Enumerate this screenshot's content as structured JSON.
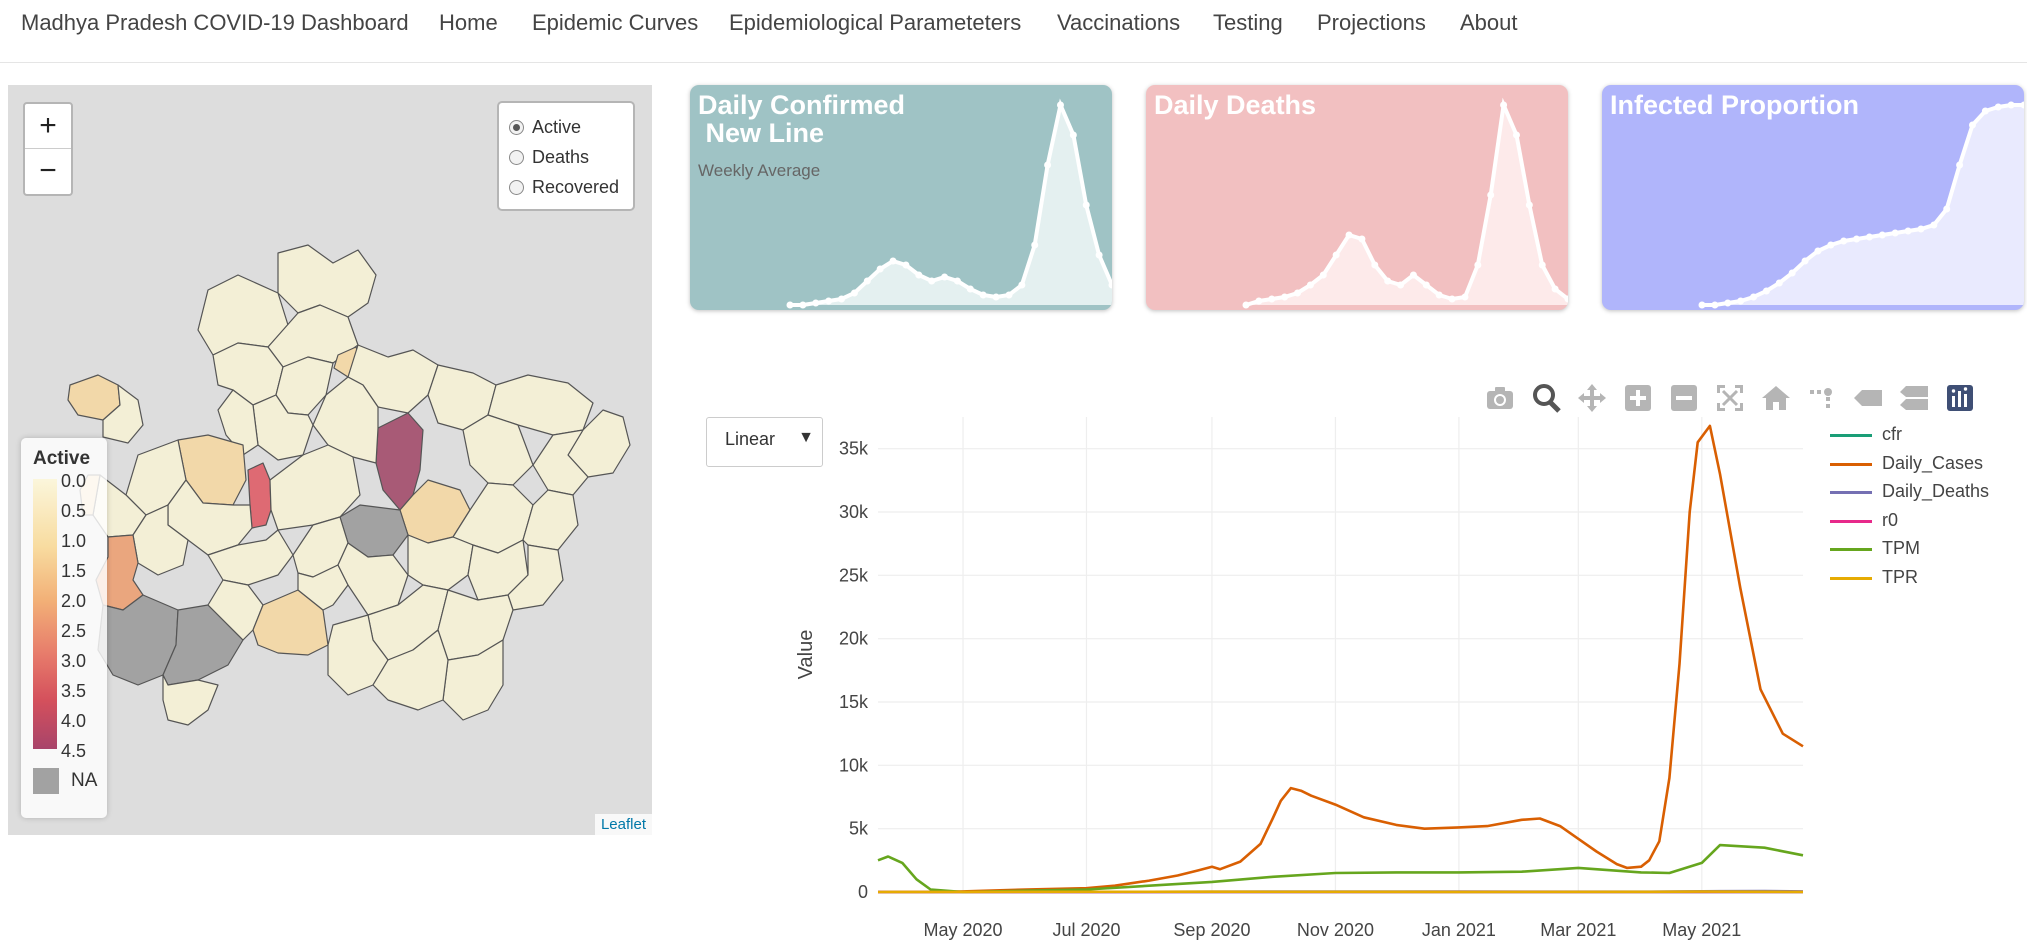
{
  "nav": {
    "brand": "Madhya Pradesh COVID-19 Dashboard",
    "items": [
      "Home",
      "Epidemic Curves",
      "Epidemiological Parameteters",
      "Vaccinations",
      "Testing",
      "Projections",
      "About"
    ]
  },
  "map": {
    "zoom_in": "+",
    "zoom_out": "−",
    "layers": [
      {
        "label": "Active",
        "selected": true
      },
      {
        "label": "Deaths",
        "selected": false
      },
      {
        "label": "Recovered",
        "selected": false
      }
    ],
    "legend": {
      "title": "Active",
      "labels": [
        "0.0",
        "0.5",
        "1.0",
        "1.5",
        "2.0",
        "2.5",
        "3.0",
        "3.5",
        "4.0",
        "4.5"
      ],
      "na_label": "NA"
    },
    "attribution": "Leaflet",
    "colors": {
      "background": "#dddddd",
      "low": "#f3efd6",
      "mid": "#f2d8a9",
      "orange": "#eaa67e",
      "red": "#de6a73",
      "dark": "#a85a76",
      "na": "#a2a2a2"
    }
  },
  "cards": [
    {
      "title_line1": "Daily Confirmed",
      "title_line2": " New Line",
      "subtitle": "Weekly Average",
      "bg": "#9fc3c5",
      "fill": "#e4f0f0",
      "values": [
        0,
        0,
        0.01,
        0.02,
        0.03,
        0.06,
        0.12,
        0.18,
        0.22,
        0.2,
        0.15,
        0.12,
        0.14,
        0.12,
        0.08,
        0.05,
        0.04,
        0.05,
        0.1,
        0.3,
        0.7,
        1.0,
        0.85,
        0.5,
        0.25,
        0.1
      ]
    },
    {
      "title_line1": "Daily Deaths",
      "title_line2": "",
      "subtitle": "",
      "bg": "#f2c0c1",
      "fill": "#fdeaea",
      "values": [
        0,
        0.02,
        0.03,
        0.04,
        0.06,
        0.1,
        0.15,
        0.25,
        0.35,
        0.33,
        0.2,
        0.12,
        0.1,
        0.15,
        0.1,
        0.05,
        0.03,
        0.04,
        0.2,
        0.55,
        1.0,
        0.85,
        0.5,
        0.2,
        0.08,
        0.03
      ]
    },
    {
      "title_line1": "Infected Proportion",
      "title_line2": "",
      "subtitle": "",
      "bg": "#b0b5fb",
      "fill": "#e9eafe",
      "values": [
        0,
        0.0,
        0.01,
        0.02,
        0.04,
        0.07,
        0.11,
        0.16,
        0.22,
        0.27,
        0.3,
        0.32,
        0.33,
        0.34,
        0.35,
        0.36,
        0.37,
        0.38,
        0.4,
        0.48,
        0.7,
        0.9,
        0.97,
        0.99,
        1.0,
        1.0
      ]
    }
  ],
  "toolbar": {
    "icons": [
      "camera-icon",
      "zoom-icon",
      "pan-icon",
      "zoom-in-icon",
      "zoom-out-icon",
      "autoscale-icon",
      "reset-axes-icon",
      "spike-lines-icon",
      "hover-closest-icon",
      "hover-compare-icon",
      "plotly-logo-icon"
    ]
  },
  "scale_select": {
    "value": "Linear",
    "arrow": "▼"
  },
  "chart_data": {
    "type": "line",
    "xlabel": "",
    "ylabel": "Value",
    "ylim": [
      0,
      37500
    ],
    "yticks": [
      0,
      5000,
      10000,
      15000,
      20000,
      25000,
      30000,
      35000
    ],
    "ytick_labels": [
      "0",
      "5k",
      "10k",
      "15k",
      "20k",
      "25k",
      "30k",
      "35k"
    ],
    "xlim": [
      "2020-03-20",
      "2021-06-20"
    ],
    "xticks": [
      "2020-05-01",
      "2020-07-01",
      "2020-09-01",
      "2020-11-01",
      "2021-01-01",
      "2021-03-01",
      "2021-05-01"
    ],
    "xtick_labels": [
      "May 2020",
      "Jul 2020",
      "Sep 2020",
      "Nov 2020",
      "Jan 2021",
      "Mar 2021",
      "May 2021"
    ],
    "grid": true,
    "legend_position": "top-right",
    "series": [
      {
        "name": "cfr",
        "color": "#1a9e77",
        "x": [
          "2020-03-20",
          "2020-04-15",
          "2021-06-20"
        ],
        "y": [
          0,
          0,
          0
        ]
      },
      {
        "name": "Daily_Cases",
        "color": "#d95f02",
        "x": [
          "2020-03-20",
          "2020-04-15",
          "2020-05-01",
          "2020-06-01",
          "2020-07-01",
          "2020-07-15",
          "2020-08-01",
          "2020-08-15",
          "2020-08-25",
          "2020-09-01",
          "2020-09-05",
          "2020-09-15",
          "2020-09-25",
          "2020-10-01",
          "2020-10-05",
          "2020-10-10",
          "2020-10-15",
          "2020-10-20",
          "2020-11-01",
          "2020-11-15",
          "2020-12-01",
          "2020-12-15",
          "2021-01-01",
          "2021-01-15",
          "2021-02-01",
          "2021-02-10",
          "2021-02-20",
          "2021-03-01",
          "2021-03-10",
          "2021-03-20",
          "2021-03-25",
          "2021-04-01",
          "2021-04-05",
          "2021-04-10",
          "2021-04-15",
          "2021-04-20",
          "2021-04-25",
          "2021-04-29",
          "2021-05-05",
          "2021-05-10",
          "2021-05-20",
          "2021-05-30",
          "2021-06-10",
          "2021-06-20"
        ],
        "y": [
          0,
          0,
          50,
          200,
          300,
          500,
          900,
          1300,
          1700,
          2000,
          1800,
          2400,
          3800,
          5800,
          7200,
          8200,
          8000,
          7600,
          6900,
          5900,
          5300,
          5000,
          5100,
          5200,
          5700,
          5800,
          5200,
          4200,
          3200,
          2200,
          1900,
          2000,
          2500,
          4000,
          9000,
          18000,
          30000,
          35500,
          36800,
          33000,
          24000,
          16000,
          12500,
          11500
        ]
      },
      {
        "name": "Daily_Deaths",
        "color": "#7570b3",
        "x": [
          "2020-03-20",
          "2020-08-01",
          "2020-10-01",
          "2021-01-01",
          "2021-04-01",
          "2021-05-10",
          "2021-06-01",
          "2021-06-20"
        ],
        "y": [
          0,
          15,
          40,
          30,
          25,
          60,
          80,
          50
        ]
      },
      {
        "name": "r0",
        "color": "#e7298a",
        "x": [
          "2020-03-20",
          "2021-06-20"
        ],
        "y": [
          0,
          0
        ]
      },
      {
        "name": "TPM",
        "color": "#66a61e",
        "x": [
          "2020-03-20",
          "2020-03-25",
          "2020-04-01",
          "2020-04-08",
          "2020-04-15",
          "2020-05-01",
          "2020-06-01",
          "2020-07-01",
          "2020-08-01",
          "2020-09-01",
          "2020-10-01",
          "2020-11-01",
          "2020-12-01",
          "2021-01-01",
          "2021-02-01",
          "2021-03-01",
          "2021-04-01",
          "2021-04-15",
          "2021-05-01",
          "2021-05-10",
          "2021-06-01",
          "2021-06-20"
        ],
        "y": [
          2500,
          2800,
          2300,
          1000,
          200,
          0,
          100,
          200,
          500,
          800,
          1200,
          1500,
          1550,
          1550,
          1600,
          1900,
          1550,
          1500,
          2300,
          3700,
          3500,
          2900
        ]
      },
      {
        "name": "TPR",
        "color": "#e6ab02",
        "x": [
          "2020-03-20",
          "2020-05-01",
          "2020-09-01",
          "2021-01-01",
          "2021-04-01",
          "2021-05-01",
          "2021-06-20"
        ],
        "y": [
          0,
          5,
          20,
          10,
          15,
          30,
          10
        ]
      }
    ]
  }
}
